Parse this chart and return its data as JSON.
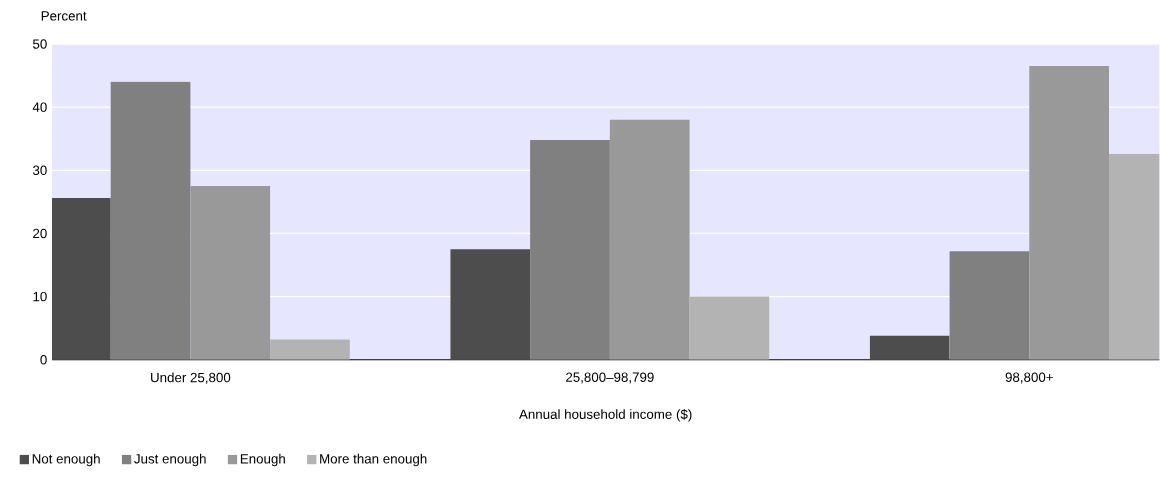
{
  "chart_data": {
    "type": "bar",
    "ylabel": "Percent",
    "xlabel": "Annual household income ($)",
    "categories": [
      "Under 25,800",
      "25,800–98,799",
      "98,800+"
    ],
    "series": [
      {
        "name": "Not enough",
        "color": "#4d4d4d",
        "values": [
          25.6,
          17.5,
          3.8
        ]
      },
      {
        "name": "Just enough",
        "color": "#808080",
        "values": [
          44.0,
          34.8,
          17.2
        ]
      },
      {
        "name": "Enough",
        "color": "#999999",
        "values": [
          27.5,
          38.0,
          46.5
        ]
      },
      {
        "name": "More than enough",
        "color": "#b3b3b3",
        "values": [
          3.2,
          10.0,
          32.6
        ]
      }
    ],
    "ylim": [
      0,
      50
    ],
    "yticks": [
      0,
      10,
      20,
      30,
      40,
      50
    ],
    "grid": "y",
    "legend": "bottom"
  }
}
